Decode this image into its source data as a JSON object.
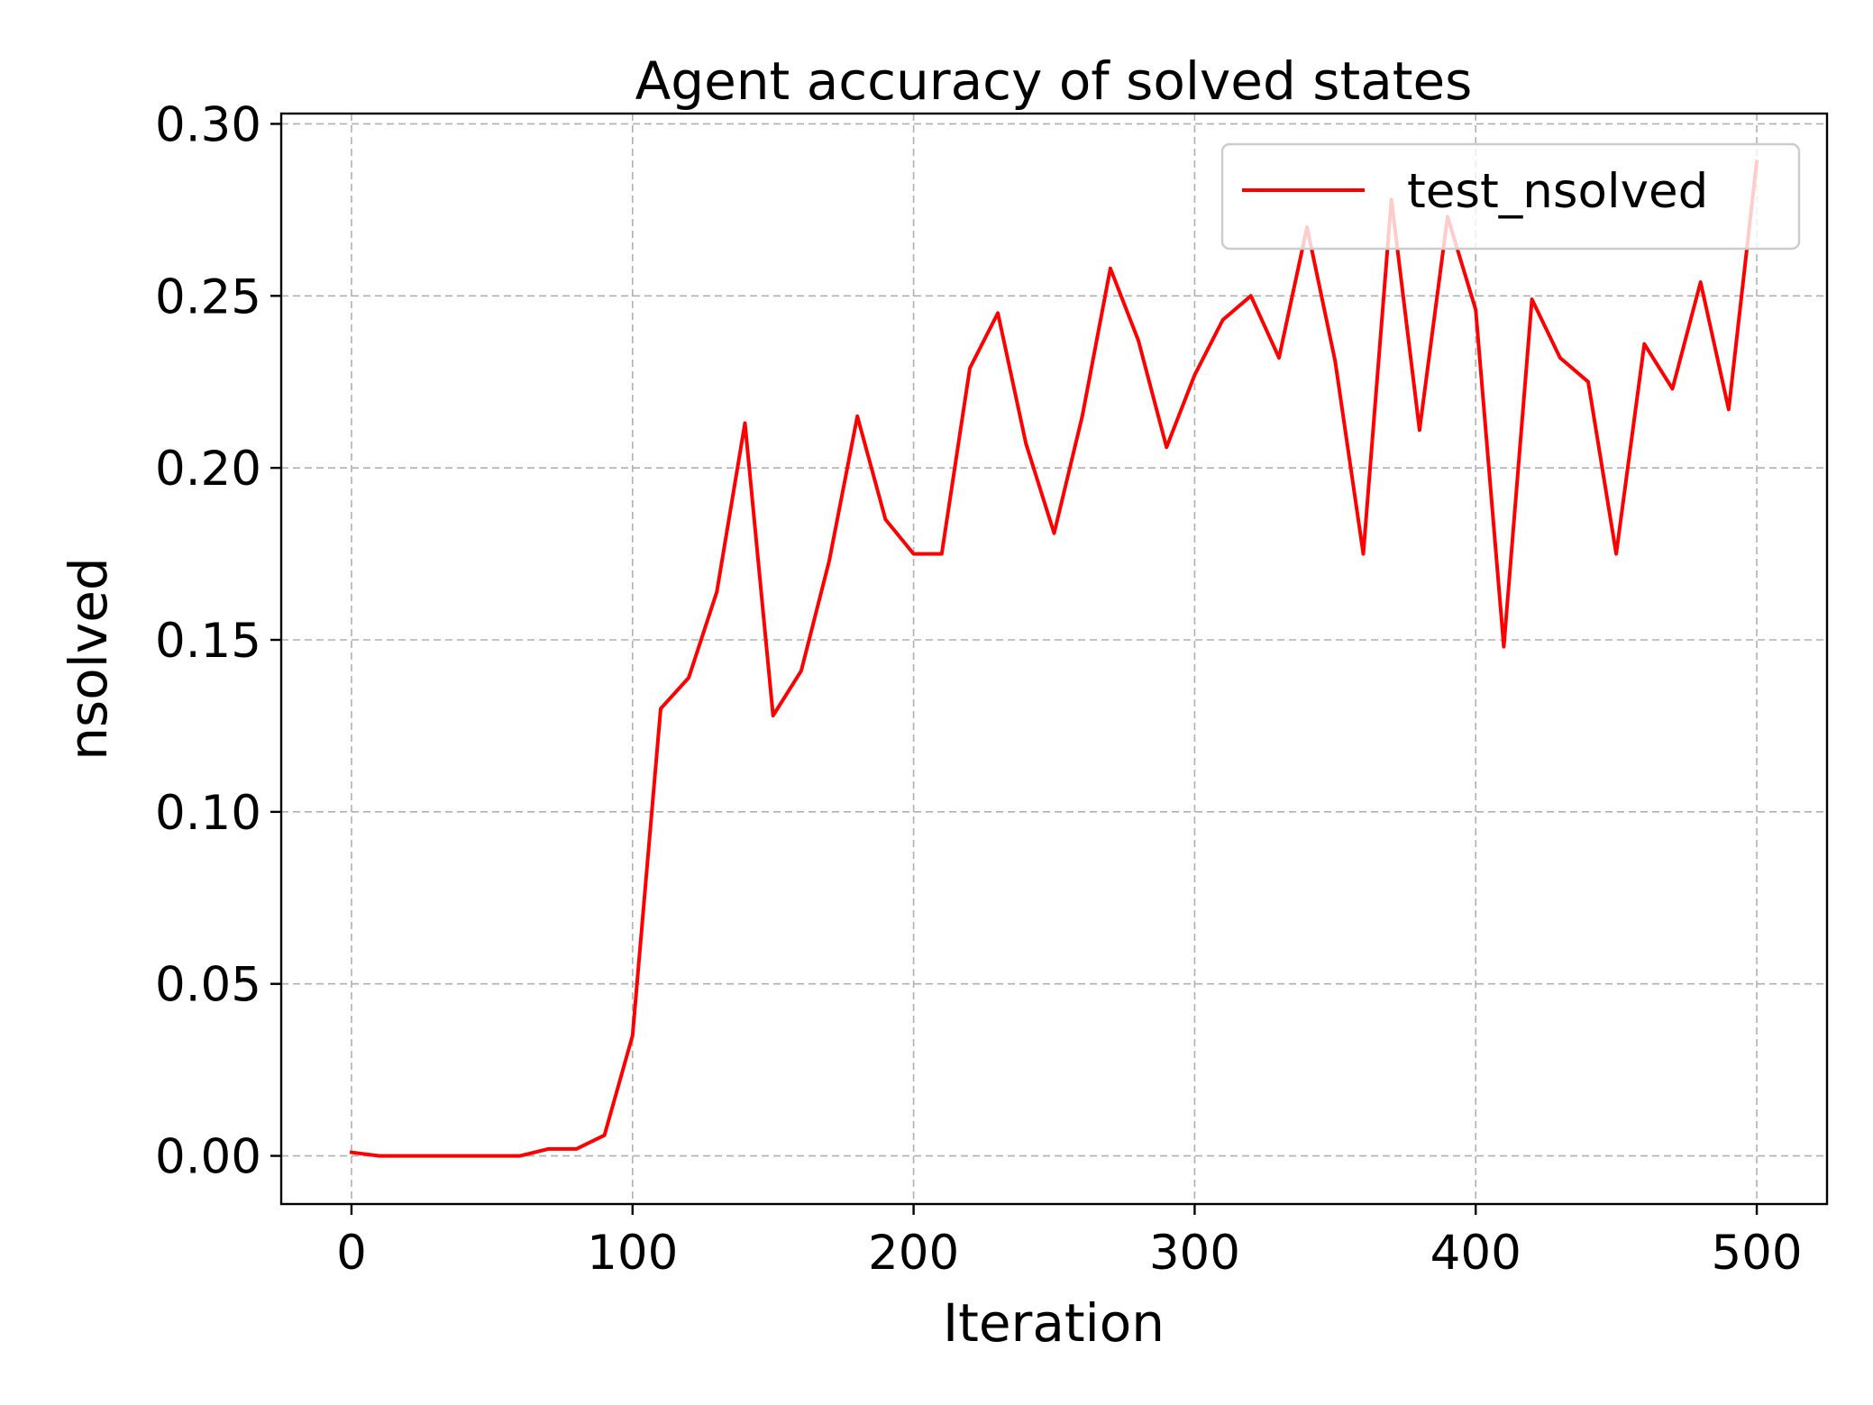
{
  "chart_data": {
    "type": "line",
    "title": "Agent accuracy of solved states",
    "xlabel": "Iteration",
    "ylabel": "nsolved",
    "xlim": [
      -25,
      525
    ],
    "ylim": [
      -0.014,
      0.303
    ],
    "xticks": [
      0,
      100,
      200,
      300,
      400,
      500
    ],
    "xtick_labels": [
      "0",
      "100",
      "200",
      "300",
      "400",
      "500"
    ],
    "yticks": [
      0.0,
      0.05,
      0.1,
      0.15,
      0.2,
      0.25,
      0.3
    ],
    "ytick_labels": [
      "0.00",
      "0.05",
      "0.10",
      "0.15",
      "0.20",
      "0.25",
      "0.30"
    ],
    "grid": true,
    "legend_position": "top-right",
    "series": [
      {
        "name": "test_nsolved",
        "color": "#ff0000",
        "x": [
          0,
          10,
          20,
          30,
          40,
          50,
          60,
          70,
          80,
          90,
          100,
          110,
          120,
          130,
          140,
          150,
          160,
          170,
          180,
          190,
          200,
          210,
          220,
          230,
          240,
          250,
          260,
          270,
          280,
          290,
          300,
          310,
          320,
          330,
          340,
          350,
          360,
          370,
          380,
          390,
          400,
          410,
          420,
          430,
          440,
          450,
          460,
          470,
          480,
          490,
          500
        ],
        "y": [
          0.001,
          0.0,
          0.0,
          0.0,
          0.0,
          0.0,
          0.0,
          0.002,
          0.002,
          0.006,
          0.035,
          0.13,
          0.139,
          0.164,
          0.213,
          0.128,
          0.141,
          0.173,
          0.215,
          0.185,
          0.175,
          0.175,
          0.229,
          0.245,
          0.207,
          0.181,
          0.215,
          0.258,
          0.237,
          0.206,
          0.227,
          0.243,
          0.25,
          0.232,
          0.27,
          0.231,
          0.175,
          0.278,
          0.211,
          0.273,
          0.246,
          0.148,
          0.249,
          0.232,
          0.225,
          0.175,
          0.236,
          0.223,
          0.254,
          0.217,
          0.289
        ]
      }
    ]
  }
}
